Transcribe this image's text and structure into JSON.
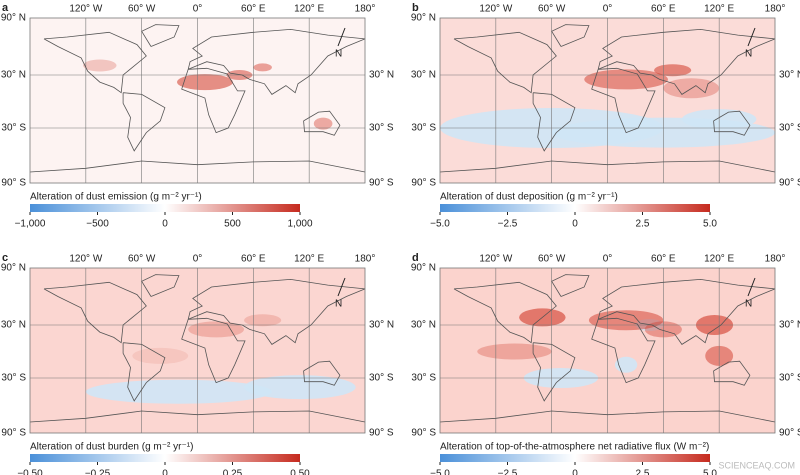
{
  "lon_labels": [
    "120° W",
    "60° W",
    "0°",
    "60° E",
    "120° E",
    "180°"
  ],
  "lat_labels_left": [
    "90° N",
    "30° N",
    "30° S",
    "90° S"
  ],
  "lat_labels_right": [
    "30° N",
    "30° S",
    "90° S"
  ],
  "north_label": "N",
  "watermark": "SCIENCEAQ.COM",
  "panels": [
    {
      "letter": "a",
      "colorbar": {
        "label": "Alteration of dust emission (g m⁻² yr⁻¹)",
        "ticks": [
          "−1,000",
          "−500",
          "0",
          "500",
          "1,000"
        ]
      }
    },
    {
      "letter": "b",
      "colorbar": {
        "label": "Alteration of dust deposition (g m⁻² yr⁻¹)",
        "ticks": [
          "−5.0",
          "−2.5",
          "0",
          "2.5",
          "5.0"
        ]
      }
    },
    {
      "letter": "c",
      "colorbar": {
        "label": "Alteration of dust burden (g m⁻² yr⁻¹)",
        "ticks": [
          "−0.50",
          "−0.25",
          "0",
          "0.25",
          "0.50"
        ]
      }
    },
    {
      "letter": "d",
      "colorbar": {
        "label": "Alteration of top-of-the-atmosphere net radiative flux (W m⁻²)",
        "ticks": [
          "−5.0",
          "−2.5",
          "0",
          "2.5",
          "5.0"
        ]
      }
    }
  ]
}
